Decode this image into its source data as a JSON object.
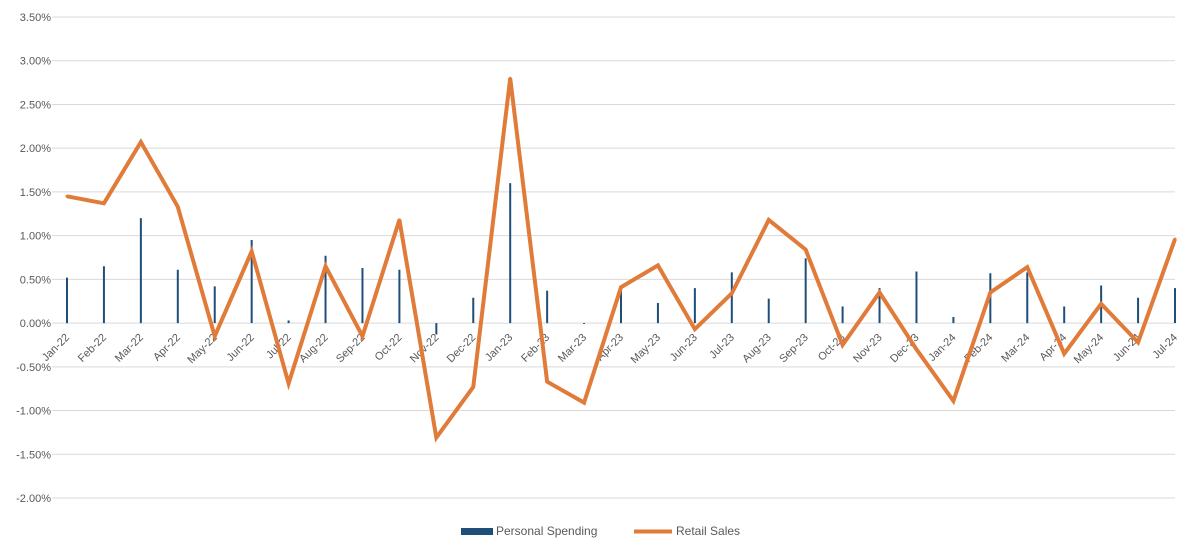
{
  "chart_data": {
    "type": "bar",
    "title": "",
    "xlabel": "",
    "ylabel": "",
    "ylim": [
      -0.02,
      0.035
    ],
    "yticks": [
      "3.50%",
      "3.00%",
      "2.50%",
      "2.00%",
      "1.50%",
      "1.00%",
      "0.50%",
      "0.00%",
      "-0.50%",
      "-1.00%",
      "-1.50%",
      "-2.00%"
    ],
    "grid": true,
    "legend_position": "bottom",
    "categories": [
      "Jan-22",
      "Feb-22",
      "Mar-22",
      "Apr-22",
      "May-22",
      "Jun-22",
      "Jul-22",
      "Aug-22",
      "Sep-22",
      "Oct-22",
      "Nov-22",
      "Dec-22",
      "Jan-23",
      "Feb-23",
      "Mar-23",
      "Apr-23",
      "May-23",
      "Jun-23",
      "Jul-23",
      "Aug-23",
      "Sep-23",
      "Oct-23",
      "Nov-23",
      "Dec-23",
      "Jan-24",
      "Feb-24",
      "Mar-24",
      "Apr-24",
      "May-24",
      "Jun-24",
      "Jul-24"
    ],
    "series": [
      {
        "name": "Personal Spending",
        "kind": "bar",
        "color": "#1f4e79",
        "values": [
          0.0052,
          0.0065,
          0.012,
          0.0061,
          0.0042,
          0.0095,
          0.0003,
          0.0077,
          0.0063,
          0.0061,
          -0.0013,
          0.0029,
          0.016,
          0.0037,
          -0.0001,
          0.004,
          0.0023,
          0.004,
          0.0058,
          0.0028,
          0.0074,
          0.0019,
          0.004,
          0.0059,
          0.0007,
          0.0057,
          0.0058,
          0.0019,
          0.0043,
          0.0029,
          0.004
        ]
      },
      {
        "name": "Retail Sales",
        "kind": "line",
        "color": "#e07b39",
        "values": [
          0.0145,
          0.0137,
          0.0207,
          0.0133,
          -0.0015,
          0.0082,
          -0.0069,
          0.0065,
          -0.0015,
          0.0118,
          -0.0131,
          -0.0073,
          0.028,
          -0.0067,
          -0.0091,
          0.0041,
          0.0066,
          -0.0007,
          0.0034,
          0.0118,
          0.0084,
          -0.0025,
          0.0035,
          -0.003,
          -0.0089,
          0.0035,
          0.0064,
          -0.0035,
          0.0022,
          -0.0022,
          0.0096
        ]
      }
    ]
  }
}
